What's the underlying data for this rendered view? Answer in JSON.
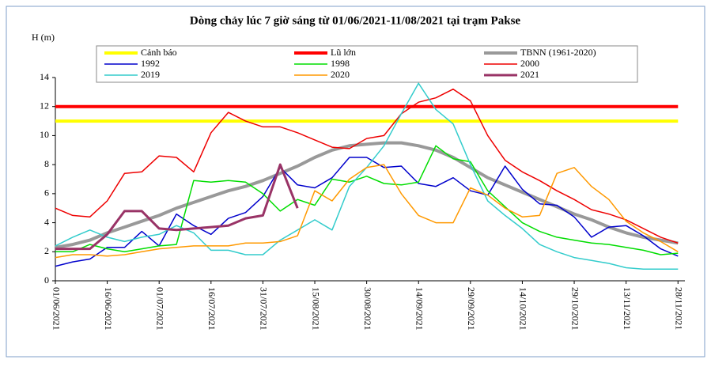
{
  "chart_data": {
    "type": "line",
    "title": "Dòng chảy lúc 7 giờ sáng từ 01/06/2021-11/08/2021 tại trạm Pakse",
    "y_label": "H (m)",
    "x": [
      "01/06/2021",
      "06/06/2021",
      "11/06/2021",
      "16/06/2021",
      "21/06/2021",
      "26/06/2021",
      "01/07/2021",
      "06/07/2021",
      "11/07/2021",
      "16/07/2021",
      "21/07/2021",
      "26/07/2021",
      "31/07/2021",
      "05/08/2021",
      "10/08/2021",
      "15/08/2021",
      "20/08/2021",
      "25/08/2021",
      "30/08/2021",
      "04/09/2021",
      "09/09/2021",
      "14/09/2021",
      "19/09/2021",
      "24/09/2021",
      "29/09/2021",
      "04/10/2021",
      "09/10/2021",
      "14/10/2021",
      "19/10/2021",
      "24/10/2021",
      "29/10/2021",
      "03/11/2021",
      "08/11/2021",
      "13/11/2021",
      "18/11/2021",
      "23/11/2021",
      "28/11/2021"
    ],
    "xlim": [
      "01/06/2021",
      "30/11/2021"
    ],
    "xticks": [
      "01/06/2021",
      "16/06/2021",
      "01/07/2021",
      "16/07/2021",
      "31/07/2021",
      "15/08/2021",
      "30/08/2021",
      "14/09/2021",
      "29/09/2021",
      "14/10/2021",
      "29/10/2021",
      "13/11/2021",
      "28/11/2021"
    ],
    "ylim": [
      0,
      14
    ],
    "yticks": [
      0,
      2,
      4,
      6,
      8,
      10,
      12,
      14
    ],
    "series": [
      {
        "name": "Cảnh báo",
        "color": "#ffff00",
        "values": [
          11,
          11,
          11,
          11,
          11,
          11,
          11,
          11,
          11,
          11,
          11,
          11,
          11,
          11,
          11,
          11,
          11,
          11,
          11,
          11,
          11,
          11,
          11,
          11,
          11,
          11,
          11,
          11,
          11,
          11,
          11,
          11,
          11,
          11,
          11,
          11,
          11
        ]
      },
      {
        "name": "Lũ lớn",
        "color": "#ff0000",
        "values": [
          12,
          12,
          12,
          12,
          12,
          12,
          12,
          12,
          12,
          12,
          12,
          12,
          12,
          12,
          12,
          12,
          12,
          12,
          12,
          12,
          12,
          12,
          12,
          12,
          12,
          12,
          12,
          12,
          12,
          12,
          12,
          12,
          12,
          12,
          12,
          12,
          12
        ]
      },
      {
        "name": "TBNN (1961-2020)",
        "color": "#999999",
        "values": [
          2.3,
          2.5,
          2.8,
          3.3,
          3.7,
          4.1,
          4.5,
          5.0,
          5.4,
          5.8,
          6.2,
          6.5,
          6.9,
          7.4,
          7.9,
          8.5,
          9.0,
          9.3,
          9.4,
          9.5,
          9.5,
          9.3,
          9.0,
          8.5,
          7.8,
          7.1,
          6.6,
          6.1,
          5.6,
          5.1,
          4.6,
          4.2,
          3.7,
          3.3,
          3.0,
          2.8,
          2.6
        ]
      },
      {
        "name": "1992",
        "color": "#0000cc",
        "values": [
          1.0,
          1.3,
          1.5,
          2.3,
          2.3,
          3.4,
          2.4,
          4.6,
          3.8,
          3.2,
          4.3,
          4.7,
          5.8,
          7.8,
          6.6,
          6.4,
          7.1,
          8.5,
          8.5,
          7.8,
          7.9,
          6.7,
          6.5,
          7.1,
          6.2,
          5.9,
          7.9,
          6.3,
          5.3,
          5.2,
          4.4,
          3.0,
          3.7,
          3.8,
          3.1,
          2.2,
          1.7
        ]
      },
      {
        "name": "1998",
        "color": "#00dd00",
        "values": [
          2.0,
          2.0,
          2.5,
          2.2,
          2.0,
          2.2,
          2.4,
          2.5,
          6.9,
          6.8,
          6.9,
          6.8,
          6.0,
          4.8,
          5.6,
          5.2,
          7.0,
          6.8,
          7.2,
          6.7,
          6.6,
          6.8,
          9.3,
          8.4,
          8.2,
          6.2,
          5.1,
          4.0,
          3.4,
          3.0,
          2.8,
          2.6,
          2.5,
          2.3,
          2.1,
          1.8,
          1.9
        ]
      },
      {
        "name": "2000",
        "color": "#ee0000",
        "values": [
          5.0,
          4.5,
          4.4,
          5.5,
          7.4,
          7.5,
          8.6,
          8.5,
          7.5,
          10.2,
          11.6,
          11.0,
          10.6,
          10.6,
          10.2,
          9.7,
          9.2,
          9.1,
          9.8,
          10.0,
          11.5,
          12.3,
          12.6,
          13.2,
          12.4,
          10.0,
          8.3,
          7.5,
          6.9,
          6.2,
          5.6,
          4.9,
          4.6,
          4.2,
          3.6,
          3.0,
          2.6
        ]
      },
      {
        "name": "2019",
        "color": "#33cccc",
        "values": [
          2.4,
          3.0,
          3.5,
          3.0,
          2.7,
          3.0,
          3.2,
          3.8,
          3.3,
          2.1,
          2.1,
          1.8,
          1.8,
          2.8,
          3.5,
          4.2,
          3.5,
          6.5,
          7.8,
          9.3,
          11.5,
          13.6,
          11.8,
          10.8,
          8.0,
          5.5,
          4.5,
          3.6,
          2.5,
          2.0,
          1.6,
          1.4,
          1.2,
          0.9,
          0.8,
          0.8,
          0.8
        ]
      },
      {
        "name": "2020",
        "color": "#ff9900",
        "values": [
          1.6,
          1.8,
          1.8,
          1.7,
          1.8,
          2.0,
          2.2,
          2.3,
          2.4,
          2.4,
          2.4,
          2.6,
          2.6,
          2.7,
          3.1,
          6.2,
          5.5,
          7.0,
          7.8,
          8.0,
          6.0,
          4.5,
          4.0,
          4.0,
          6.4,
          5.9,
          5.0,
          4.4,
          4.5,
          7.4,
          7.8,
          6.5,
          5.6,
          4.1,
          3.3,
          2.7,
          2.0
        ]
      },
      {
        "name": "2021",
        "color": "#993366",
        "values": [
          2.2,
          2.2,
          2.2,
          3.2,
          4.8,
          4.8,
          3.6,
          3.5,
          3.6,
          3.7,
          3.8,
          4.3,
          4.5,
          8.0,
          5.0,
          null,
          null,
          null,
          null,
          null,
          null,
          null,
          null,
          null,
          null,
          null,
          null,
          null,
          null,
          null,
          null,
          null,
          null,
          null,
          null,
          null,
          null
        ]
      }
    ]
  }
}
